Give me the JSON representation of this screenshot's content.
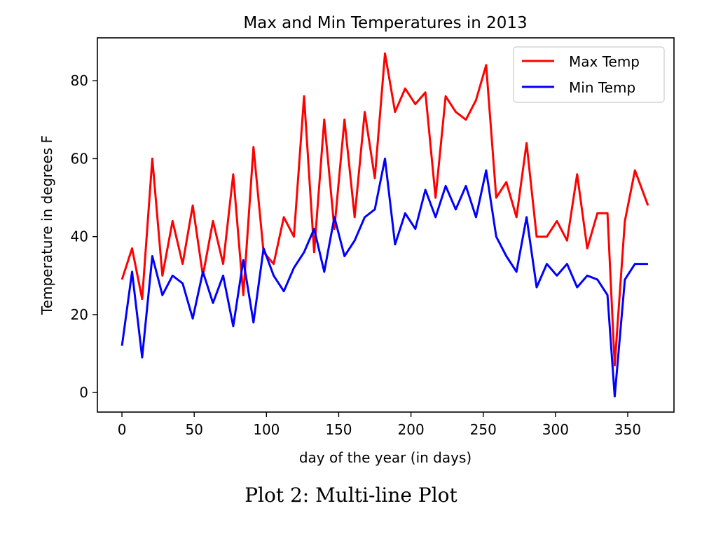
{
  "chart_data": {
    "type": "line",
    "title": "Max and Min Temperatures in 2013",
    "xlabel": "day of the year (in days)",
    "ylabel": "Temperature in degrees F",
    "xlim": [
      -17,
      382
    ],
    "ylim": [
      -5,
      91
    ],
    "xticks": [
      0,
      50,
      100,
      150,
      200,
      250,
      300,
      350
    ],
    "yticks": [
      0,
      20,
      40,
      60,
      80
    ],
    "grid": false,
    "legend_position": "top-right",
    "x": [
      0,
      7,
      14,
      21,
      28,
      35,
      42,
      49,
      56,
      63,
      70,
      77,
      84,
      91,
      98,
      105,
      112,
      119,
      126,
      133,
      140,
      147,
      154,
      161,
      168,
      175,
      182,
      189,
      196,
      203,
      210,
      217,
      224,
      231,
      238,
      245,
      252,
      259,
      266,
      273,
      280,
      287,
      294,
      301,
      308,
      315,
      322,
      329,
      336,
      341,
      348,
      355,
      364
    ],
    "series": [
      {
        "name": "Max Temp",
        "color": "#ff0000",
        "values": [
          29,
          37,
          24,
          60,
          30,
          44,
          33,
          48,
          30,
          44,
          33,
          56,
          25,
          63,
          36,
          33,
          45,
          40,
          76,
          36,
          70,
          42,
          70,
          45,
          72,
          55,
          87,
          72,
          78,
          74,
          77,
          50,
          76,
          72,
          70,
          75,
          84,
          50,
          54,
          45,
          64,
          40,
          40,
          44,
          39,
          56,
          37,
          46,
          46,
          7,
          44,
          57,
          48
        ]
      },
      {
        "name": "Min Temp",
        "color": "#0000ff",
        "values": [
          12,
          31,
          9,
          35,
          25,
          30,
          28,
          19,
          31,
          23,
          30,
          17,
          34,
          18,
          37,
          30,
          26,
          32,
          36,
          42,
          31,
          45,
          35,
          39,
          45,
          47,
          60,
          38,
          46,
          42,
          52,
          45,
          53,
          47,
          53,
          45,
          57,
          40,
          35,
          31,
          45,
          27,
          33,
          30,
          33,
          27,
          30,
          29,
          25,
          -1,
          29,
          33,
          33
        ]
      }
    ]
  },
  "caption": "Plot 2: Multi-line Plot"
}
